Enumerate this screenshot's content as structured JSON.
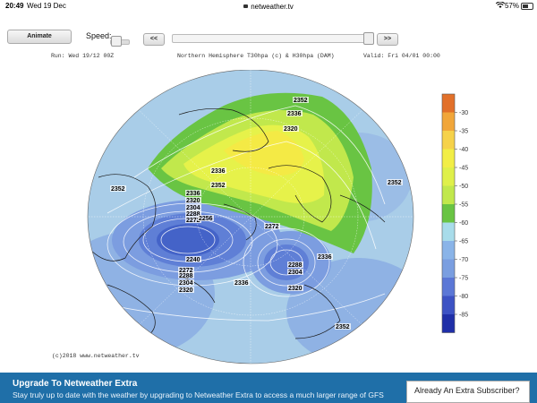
{
  "status_bar": {
    "time": "20:49",
    "date": "Wed 19 Dec",
    "url": "netweather.tv",
    "battery_text": "57%",
    "battery_level": 0.57
  },
  "controls": {
    "animate_label": "Animate",
    "speed_label": "Speed:",
    "prev_label": "<<",
    "next_label": ">>",
    "timeline_position": 1.0
  },
  "map_header": {
    "run": "Run: Wed 19/12 00Z",
    "title": "Northern Hemisphere T30hpa (c) & H30hpa (DAM)",
    "valid": "Valid: Fri 04/01 00:00"
  },
  "copyright": "(c)2018 www.netweather.tv",
  "contour_labels": [
    "2352",
    "2336",
    "2320",
    "2352",
    "2336",
    "2352",
    "2336",
    "2320",
    "2304",
    "2288",
    "2272",
    "2256",
    "2240",
    "2272",
    "2288",
    "2304",
    "2320",
    "2272",
    "2288",
    "2304",
    "2336",
    "2320",
    "2336",
    "2352",
    "2352"
  ],
  "legend": {
    "labels": [
      "-30",
      "-35",
      "-40",
      "-45",
      "-50",
      "-55",
      "-60",
      "-65",
      "-70",
      "-75",
      "-80",
      "-85"
    ],
    "colors": [
      "#e2702a",
      "#f1a63a",
      "#f6d24a",
      "#f2ee46",
      "#dff04a",
      "#c1e84c",
      "#69c443",
      "#a8dcea",
      "#8ab4e8",
      "#7a9ee0",
      "#5b77d6",
      "#3c52c4",
      "#1f2fa8"
    ]
  },
  "upgrade": {
    "title": "Upgrade To Netweather Extra",
    "text": "Stay truly up to date with the weather by upgrading to Netweather Extra to access a much larger range of GFS"
  },
  "subscriber_box": {
    "text": "Already An Extra Subscriber?"
  }
}
